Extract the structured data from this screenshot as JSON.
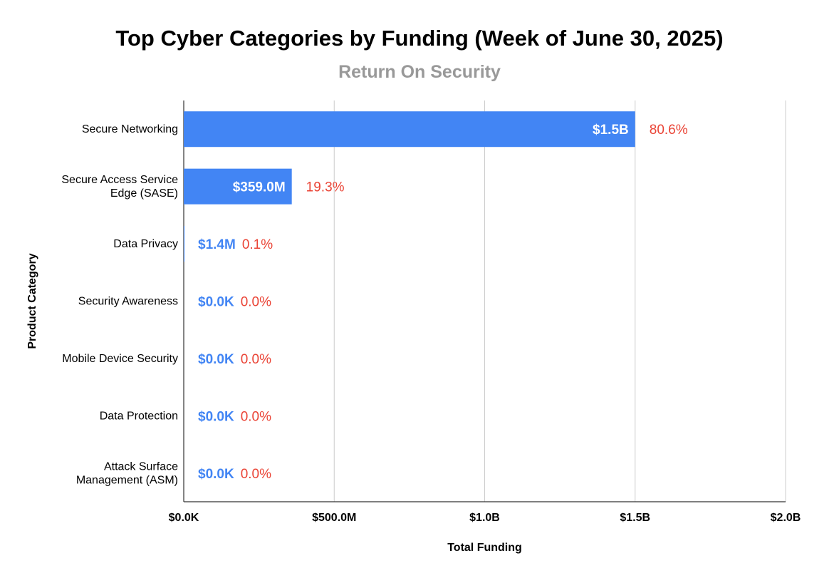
{
  "chart_data": {
    "type": "bar",
    "orientation": "horizontal",
    "title": "Top Cyber Categories by Funding (Week of June 30, 2025)",
    "subtitle": "Return On Security",
    "xlabel": "Total Funding",
    "ylabel": "Product Category",
    "xlim": [
      0,
      2000000000
    ],
    "x_ticks": [
      {
        "value": 0,
        "label": "$0.0K"
      },
      {
        "value": 500000000,
        "label": "$500.0M"
      },
      {
        "value": 1000000000,
        "label": "$1.0B"
      },
      {
        "value": 1500000000,
        "label": "$1.5B"
      },
      {
        "value": 2000000000,
        "label": "$2.0B"
      }
    ],
    "grid": true,
    "categories": [
      "Secure Networking",
      "Secure Access Service Edge (SASE)",
      "Data Privacy",
      "Security Awareness",
      "Mobile Device Security",
      "Data Protection",
      "Attack Surface Management (ASM)"
    ],
    "category_labels": [
      [
        "Secure Networking"
      ],
      [
        "Secure Access Service",
        "Edge (SASE)"
      ],
      [
        "Data Privacy"
      ],
      [
        "Security Awareness"
      ],
      [
        "Mobile Device Security"
      ],
      [
        "Data Protection"
      ],
      [
        "Attack Surface",
        "Management (ASM)"
      ]
    ],
    "values": [
      1500000000,
      359000000,
      1400000,
      0,
      0,
      0,
      0
    ],
    "value_labels": [
      "$1.5B",
      "$359.0M",
      "$1.4M",
      "$0.0K",
      "$0.0K",
      "$0.0K",
      "$0.0K"
    ],
    "percent_labels": [
      "80.6%",
      "19.3%",
      "0.1%",
      "0.0%",
      "0.0%",
      "0.0%",
      "0.0%"
    ]
  },
  "colors": {
    "bar": "#4285f4",
    "percent_label": "#ea4335",
    "subtitle": "#999999",
    "grid": "#cccccc",
    "axis": "#333333",
    "text": "#000000",
    "value_label_inside": "#ffffff"
  }
}
